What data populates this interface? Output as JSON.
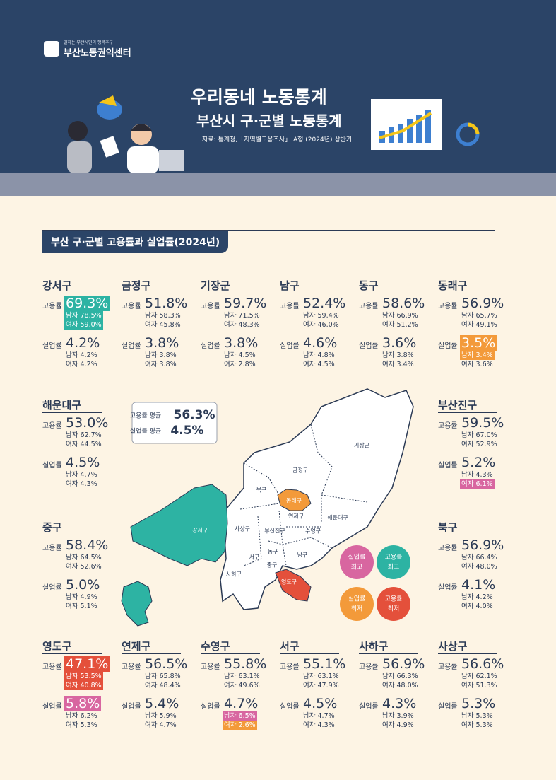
{
  "header": {
    "org_tagline": "일하는 부산시민의 행복추구",
    "org_name": "부산노동권익센터",
    "title": "우리동네 노동통계",
    "subtitle": "부산시 구·군별 노동통계",
    "source": "자료: 통계청,「지역별고용조사」 A형 (2024년) 상반기"
  },
  "section_title": "부산 구·군별 고용률과 실업률(2024년)",
  "average": {
    "employment_label": "고용률 평균",
    "employment_value": "56.3%",
    "unemployment_label": "실업률 평균",
    "unemployment_value": "4.5%"
  },
  "districts": [
    {
      "name": "강서구",
      "employment": {
        "label": "고용률",
        "value": "69.3%",
        "male": "남자 78.5%",
        "female": "여자 59.0%",
        "value_color": "#2db3a3",
        "male_color": "#2db3a3",
        "female_color": "#2db3a3"
      },
      "unemployment": {
        "label": "실업률",
        "value": "4.2%",
        "male": "남자 4.2%",
        "female": "여자 4.2%"
      }
    },
    {
      "name": "금정구",
      "employment": {
        "label": "고용률",
        "value": "51.8%",
        "male": "남자 58.3%",
        "female": "여자 45.8%"
      },
      "unemployment": {
        "label": "실업률",
        "value": "3.8%",
        "male": "남자 3.8%",
        "female": "여자 3.8%"
      }
    },
    {
      "name": "기장군",
      "employment": {
        "label": "고용률",
        "value": "59.7%",
        "male": "남자 71.5%",
        "female": "여자 48.3%"
      },
      "unemployment": {
        "label": "실업률",
        "value": "3.8%",
        "male": "남자 4.5%",
        "female": "여자 2.8%"
      }
    },
    {
      "name": "남구",
      "employment": {
        "label": "고용률",
        "value": "52.4%",
        "male": "남자 59.4%",
        "female": "여자 46.0%"
      },
      "unemployment": {
        "label": "실업률",
        "value": "4.6%",
        "male": "남자 4.8%",
        "female": "여자 4.5%"
      }
    },
    {
      "name": "동구",
      "employment": {
        "label": "고용률",
        "value": "58.6%",
        "male": "남자 66.9%",
        "female": "여자 51.2%"
      },
      "unemployment": {
        "label": "실업률",
        "value": "3.6%",
        "male": "남자 3.8%",
        "female": "여자 3.4%"
      }
    },
    {
      "name": "동래구",
      "employment": {
        "label": "고용률",
        "value": "56.9%",
        "male": "남자 65.7%",
        "female": "여자 49.1%"
      },
      "unemployment": {
        "label": "실업률",
        "value": "3.5%",
        "male": "남자 3.4%",
        "female": "여자 3.6%",
        "value_color": "#f39a3a",
        "male_color": "#f39a3a"
      }
    },
    {
      "name": "해운대구",
      "employment": {
        "label": "고용률",
        "value": "53.0%",
        "male": "남자 62.7%",
        "female": "여자 44.5%"
      },
      "unemployment": {
        "label": "실업률",
        "value": "4.5%",
        "male": "남자 4.7%",
        "female": "여자 4.3%"
      }
    },
    {
      "name": "부산진구",
      "employment": {
        "label": "고용률",
        "value": "59.5%",
        "male": "남자 67.0%",
        "female": "여자 52.9%"
      },
      "unemployment": {
        "label": "실업률",
        "value": "5.2%",
        "male": "남자 4.3%",
        "female": "여자 6.1%",
        "female_color": "#d866a0"
      }
    },
    {
      "name": "중구",
      "employment": {
        "label": "고용률",
        "value": "58.4%",
        "male": "남자 64.5%",
        "female": "여자 52.6%"
      },
      "unemployment": {
        "label": "실업률",
        "value": "5.0%",
        "male": "남자 4.9%",
        "female": "여자 5.1%"
      }
    },
    {
      "name": "북구",
      "employment": {
        "label": "고용률",
        "value": "56.9%",
        "male": "남자 66.4%",
        "female": "여자 48.0%"
      },
      "unemployment": {
        "label": "실업률",
        "value": "4.1%",
        "male": "남자 4.2%",
        "female": "여자 4.0%"
      }
    },
    {
      "name": "영도구",
      "employment": {
        "label": "고용률",
        "value": "47.1%",
        "male": "남자 53.5%",
        "female": "여자 40.8%",
        "value_color": "#e4503b",
        "male_color": "#e4503b",
        "female_color": "#e4503b"
      },
      "unemployment": {
        "label": "실업률",
        "value": "5.8%",
        "male": "남자 6.2%",
        "female": "여자 5.3%",
        "value_color": "#d866a0"
      }
    },
    {
      "name": "연제구",
      "employment": {
        "label": "고용률",
        "value": "56.5%",
        "male": "남자 65.8%",
        "female": "여자 48.4%"
      },
      "unemployment": {
        "label": "실업률",
        "value": "5.4%",
        "male": "남자 5.9%",
        "female": "여자 4.7%"
      }
    },
    {
      "name": "수영구",
      "employment": {
        "label": "고용률",
        "value": "55.8%",
        "male": "남자 63.1%",
        "female": "여자 49.6%"
      },
      "unemployment": {
        "label": "실업률",
        "value": "4.7%",
        "male": "남자 6.5%",
        "female": "여자 2.6%",
        "male_color": "#d866a0",
        "female_color": "#f39a3a"
      }
    },
    {
      "name": "서구",
      "employment": {
        "label": "고용률",
        "value": "55.1%",
        "male": "남자 63.1%",
        "female": "여자 47.9%"
      },
      "unemployment": {
        "label": "실업률",
        "value": "4.5%",
        "male": "남자 4.7%",
        "female": "여자 4.3%"
      }
    },
    {
      "name": "사하구",
      "employment": {
        "label": "고용률",
        "value": "56.9%",
        "male": "남자 66.3%",
        "female": "여자 48.0%"
      },
      "unemployment": {
        "label": "실업률",
        "value": "4.3%",
        "male": "남자 3.9%",
        "female": "여자 4.9%"
      }
    },
    {
      "name": "사상구",
      "employment": {
        "label": "고용률",
        "value": "56.6%",
        "male": "남자 62.1%",
        "female": "여자 51.3%"
      },
      "unemployment": {
        "label": "실업률",
        "value": "5.3%",
        "male": "남자 5.3%",
        "female": "여자 5.3%"
      }
    }
  ],
  "map_labels": [
    "기장군",
    "금정구",
    "북구",
    "동래구",
    "강서구",
    "사상구",
    "연제구",
    "부산진구",
    "수영구",
    "해운대구",
    "동구",
    "서구",
    "중구",
    "남구",
    "사하구",
    "영도구"
  ],
  "legend": [
    {
      "lines": [
        "실업률",
        "최고"
      ],
      "color": "#d866a0"
    },
    {
      "lines": [
        "고용률",
        "최고"
      ],
      "color": "#2db3a3"
    },
    {
      "lines": [
        "실업률",
        "최저"
      ],
      "color": "#f39a3a"
    },
    {
      "lines": [
        "고용률",
        "최저"
      ],
      "color": "#e4503b"
    }
  ]
}
